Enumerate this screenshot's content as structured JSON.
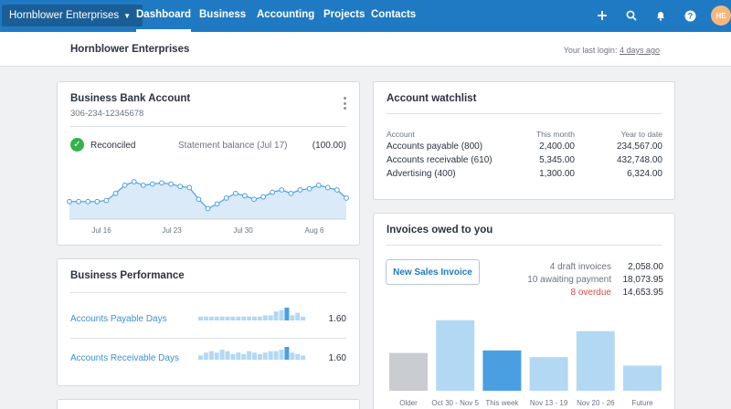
{
  "nav": {
    "org_name": "Hornblower Enterprises",
    "items": [
      {
        "label": "Dashboard",
        "active": true
      },
      {
        "label": "Business"
      },
      {
        "label": "Accounting"
      },
      {
        "label": "Projects"
      },
      {
        "label": "Contacts"
      }
    ],
    "icons": [
      "plus-icon",
      "search-icon",
      "bell-icon",
      "help-icon"
    ],
    "avatar_initials": "HE"
  },
  "header": {
    "title": "Hornblower Enterprises",
    "last_login_prefix": "Your last login: ",
    "last_login_when": "4 days ago"
  },
  "bank_account": {
    "title": "Business Bank Account",
    "account_number": "306-234-12345678",
    "status": "Reconciled",
    "statement_label": "Statement balance (Jul 17)",
    "statement_value": "(100.00)",
    "chart_data": {
      "type": "area",
      "x_ticks": [
        "Jul 16",
        "Jul 23",
        "Jul 30",
        "Aug 6"
      ],
      "values": [
        30,
        30,
        30,
        30,
        32,
        44,
        58,
        64,
        58,
        60,
        62,
        60,
        56,
        54,
        34,
        18,
        26,
        36,
        44,
        40,
        34,
        38,
        46,
        50,
        44,
        50,
        52,
        58,
        54,
        50,
        36
      ],
      "ylim": [
        0,
        100
      ],
      "grid": false
    }
  },
  "performance": {
    "title": "Business Performance",
    "rows": [
      {
        "label": "Accounts Payable Days",
        "value": "1.60",
        "spark": [
          3,
          3,
          3,
          3,
          3,
          3,
          3,
          3,
          3,
          3,
          3,
          3,
          4,
          4,
          7,
          8,
          10,
          4,
          6,
          3
        ],
        "highlight": 16
      },
      {
        "label": "Accounts Receivable Days",
        "value": "1.60",
        "spark": [
          3,
          5,
          6,
          5,
          7,
          6,
          4,
          5,
          4,
          6,
          5,
          4,
          5,
          6,
          6,
          7,
          9,
          5,
          4,
          3
        ],
        "highlight": 16
      }
    ]
  },
  "watchlist": {
    "title": "Account watchlist",
    "columns": [
      "Account",
      "This month",
      "Year to date"
    ],
    "rows": [
      {
        "account": "Accounts payable (800)",
        "this_month": "2,400.00",
        "ytd": "234,567.00"
      },
      {
        "account": "Accounts receivable (610)",
        "this_month": "5,345.00",
        "ytd": "432,748.00"
      },
      {
        "account": "Advertising (400)",
        "this_month": "1,300.00",
        "ytd": "6,324.00"
      }
    ]
  },
  "invoices": {
    "title": "Invoices owed to you",
    "new_button": "New Sales Invoice",
    "summary": [
      {
        "label": "4 draft invoices",
        "value": "2,058.00",
        "status": "normal"
      },
      {
        "label": "10 awaiting payment",
        "value": "18,073.95",
        "status": "normal"
      },
      {
        "label": "8 overdue",
        "value": "14,653.95",
        "status": "overdue"
      }
    ],
    "chart_data": {
      "type": "bar",
      "categories": [
        "Older",
        "Oct 30 - Nov 5",
        "This week",
        "Nov 13 - 19",
        "Nov 20 - 26",
        "Future"
      ],
      "values": [
        45,
        84,
        48,
        40,
        71,
        30
      ],
      "ylim": [
        0,
        100
      ],
      "colors": [
        "#c9ccd1",
        "#b3d8f3",
        "#4a9fe3",
        "#b3d8f3",
        "#b3d8f3",
        "#b3d8f3"
      ]
    }
  },
  "colors": {
    "nav_bg": "#1f7ac3",
    "accent": "#1f7ac3",
    "link": "#3d8fd0",
    "success": "#35b24a",
    "overdue": "#e04b44"
  }
}
